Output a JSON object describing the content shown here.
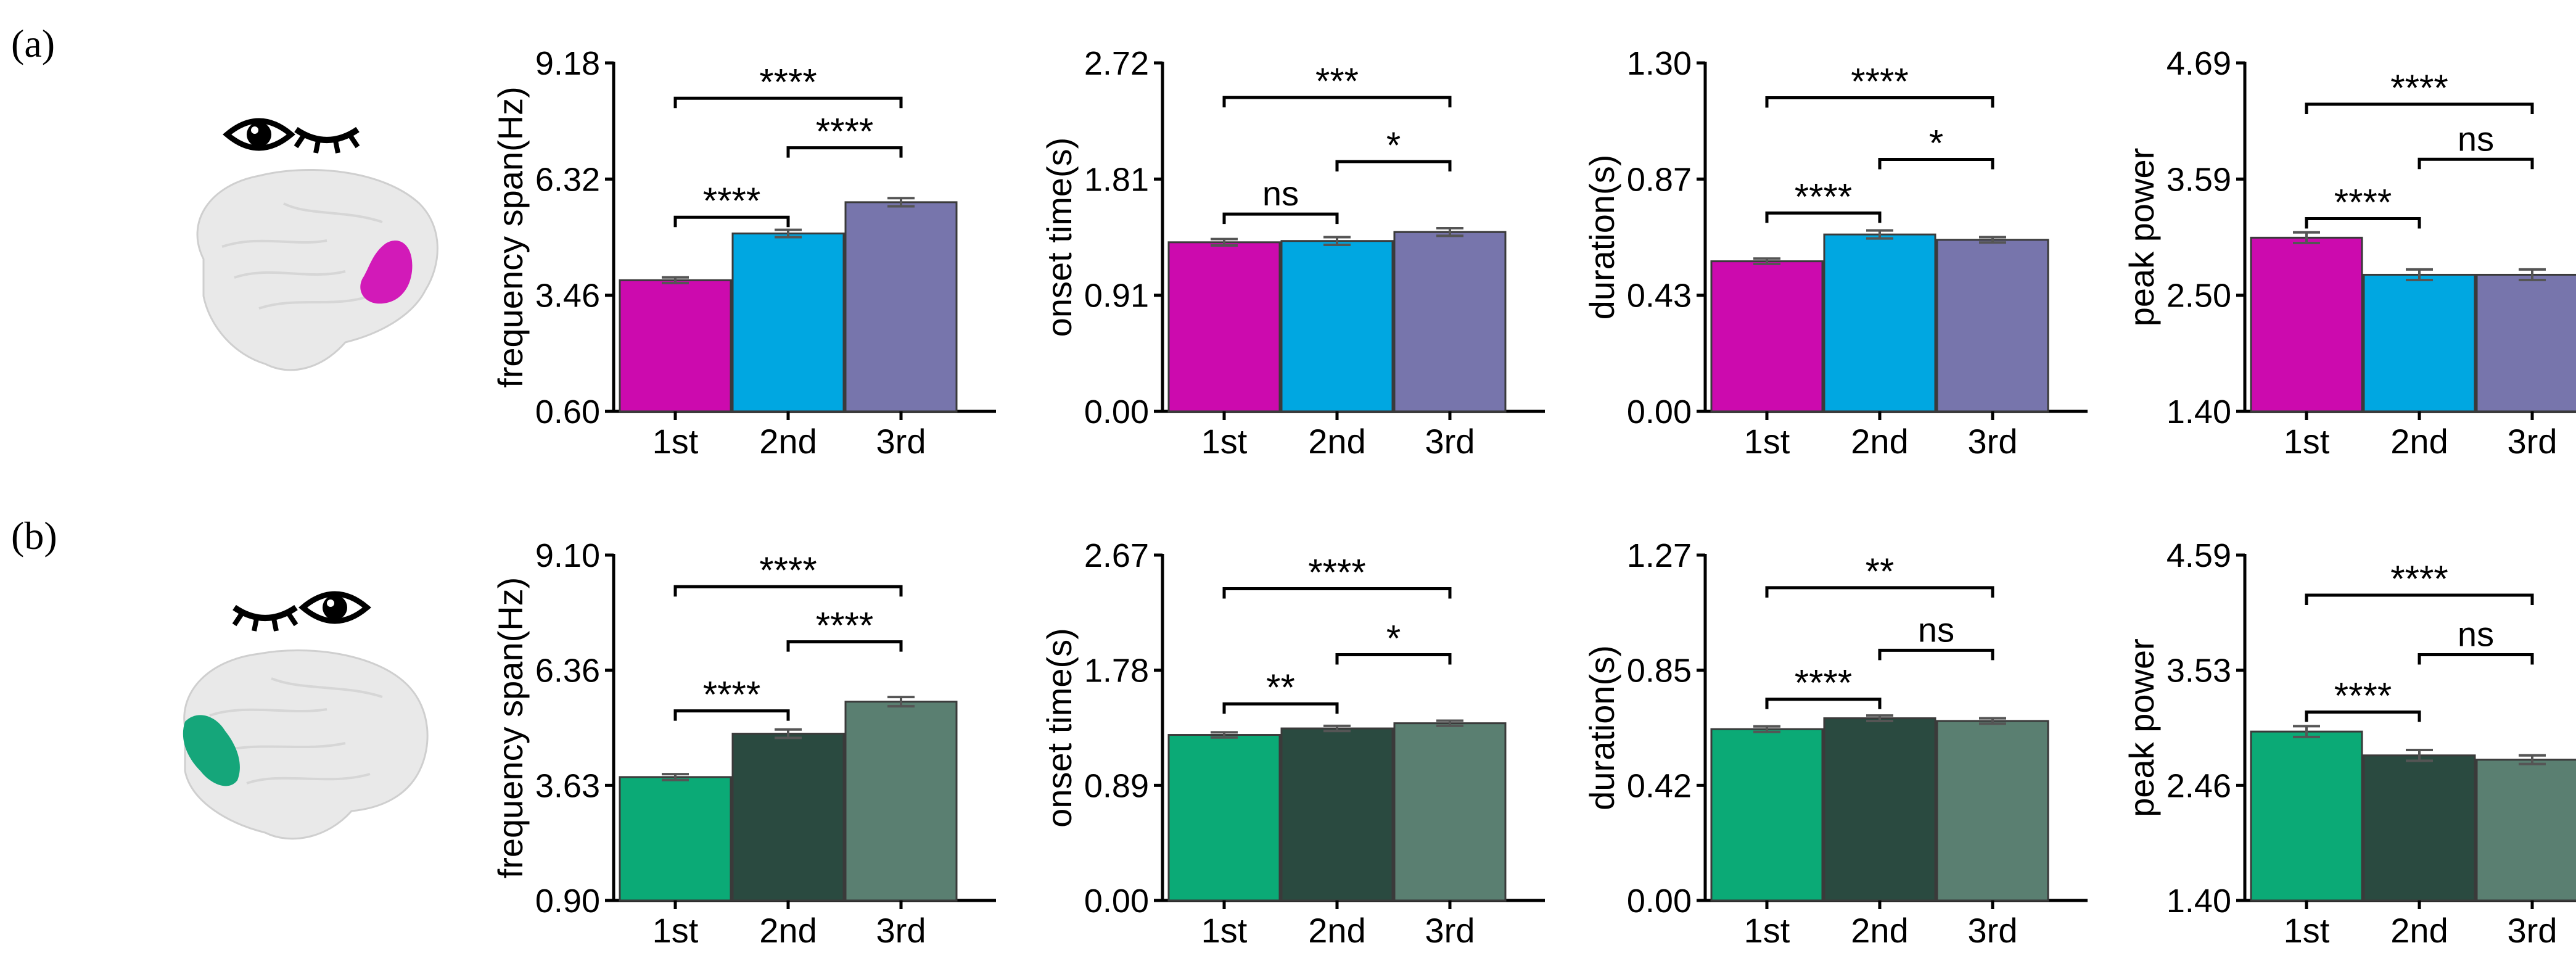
{
  "colors": {
    "row_a": [
      "#CC0AAE",
      "#00A7E1",
      "#7775AC"
    ],
    "row_b": [
      "#0BAA76",
      "#2A4A40",
      "#5A7F71"
    ],
    "brain_highlight_a": "#D21AB8",
    "brain_highlight_b": "#15A67A"
  },
  "rows": [
    {
      "panel_label": "(a)",
      "icons": [
        "open-eye-icon",
        "closed-eye-icon"
      ],
      "brain_region": "right-hemisphere-frontal"
    },
    {
      "panel_label": "(b)",
      "icons": [
        "closed-eye-icon",
        "open-eye-icon"
      ],
      "brain_region": "left-hemisphere-occipital"
    }
  ],
  "chart_data": [
    {
      "type": "bar",
      "row": 0,
      "col": 0,
      "ylabel": "frequency span(Hz)",
      "categories": [
        "1st",
        "2nd",
        "3rd"
      ],
      "values": [
        3.83,
        4.98,
        5.75
      ],
      "errors": [
        0.07,
        0.09,
        0.1
      ],
      "yticks": [
        "0.60",
        "3.46",
        "6.32",
        "9.18"
      ],
      "ylim": [
        0.6,
        9.18
      ],
      "brackets": [
        {
          "from": 0,
          "to": 1,
          "label": "****",
          "y": 5.38
        },
        {
          "from": 1,
          "to": 2,
          "label": "****",
          "y": 7.09
        },
        {
          "from": 0,
          "to": 2,
          "label": "****",
          "y": 8.31
        }
      ]
    },
    {
      "type": "bar",
      "row": 0,
      "col": 1,
      "ylabel": "onset time(s)",
      "categories": [
        "1st",
        "2nd",
        "3rd"
      ],
      "values": [
        1.32,
        1.33,
        1.4
      ],
      "errors": [
        0.025,
        0.03,
        0.03
      ],
      "yticks": [
        "0.00",
        "0.91",
        "1.81",
        "2.72"
      ],
      "ylim": [
        0,
        2.72
      ],
      "brackets": [
        {
          "from": 0,
          "to": 1,
          "label": "ns",
          "y": 1.54
        },
        {
          "from": 1,
          "to": 2,
          "label": "*",
          "y": 1.95
        },
        {
          "from": 0,
          "to": 2,
          "label": "***",
          "y": 2.45
        }
      ]
    },
    {
      "type": "bar",
      "row": 0,
      "col": 2,
      "ylabel": "duration(s)",
      "categories": [
        "1st",
        "2nd",
        "3rd"
      ],
      "values": [
        0.56,
        0.66,
        0.64
      ],
      "errors": [
        0.01,
        0.015,
        0.01
      ],
      "yticks": [
        "0.00",
        "0.43",
        "0.87",
        "1.30"
      ],
      "ylim": [
        0,
        1.3
      ],
      "brackets": [
        {
          "from": 0,
          "to": 1,
          "label": "****",
          "y": 0.74
        },
        {
          "from": 1,
          "to": 2,
          "label": "*",
          "y": 0.94
        },
        {
          "from": 0,
          "to": 2,
          "label": "****",
          "y": 1.17
        }
      ]
    },
    {
      "type": "bar",
      "row": 0,
      "col": 3,
      "ylabel": "peak power",
      "categories": [
        "1st",
        "2nd",
        "3rd"
      ],
      "values": [
        3.04,
        2.69,
        2.69
      ],
      "errors": [
        0.05,
        0.05,
        0.05
      ],
      "yticks": [
        "1.40",
        "2.50",
        "3.59",
        "4.69"
      ],
      "ylim": [
        1.4,
        4.69
      ],
      "brackets": [
        {
          "from": 0,
          "to": 1,
          "label": "****",
          "y": 3.22
        },
        {
          "from": 1,
          "to": 2,
          "label": "ns",
          "y": 3.78
        },
        {
          "from": 0,
          "to": 2,
          "label": "****",
          "y": 4.3
        }
      ]
    },
    {
      "type": "bar",
      "row": 1,
      "col": 0,
      "ylabel": "frequency span(Hz)",
      "categories": [
        "1st",
        "2nd",
        "3rd"
      ],
      "values": [
        3.83,
        4.86,
        5.62
      ],
      "errors": [
        0.07,
        0.1,
        0.11
      ],
      "yticks": [
        "0.90",
        "3.63",
        "6.36",
        "9.10"
      ],
      "ylim": [
        0.9,
        9.1
      ],
      "brackets": [
        {
          "from": 0,
          "to": 1,
          "label": "****",
          "y": 5.4
        },
        {
          "from": 1,
          "to": 2,
          "label": "****",
          "y": 7.04
        },
        {
          "from": 0,
          "to": 2,
          "label": "****",
          "y": 8.35
        }
      ]
    },
    {
      "type": "bar",
      "row": 1,
      "col": 1,
      "ylabel": "onset time(s)",
      "categories": [
        "1st",
        "2nd",
        "3rd"
      ],
      "values": [
        1.28,
        1.33,
        1.37
      ],
      "errors": [
        0.02,
        0.02,
        0.02
      ],
      "yticks": [
        "0.00",
        "0.89",
        "1.78",
        "2.67"
      ],
      "ylim": [
        0,
        2.67
      ],
      "brackets": [
        {
          "from": 0,
          "to": 1,
          "label": "**",
          "y": 1.52
        },
        {
          "from": 1,
          "to": 2,
          "label": "*",
          "y": 1.9
        },
        {
          "from": 0,
          "to": 2,
          "label": "****",
          "y": 2.41
        }
      ]
    },
    {
      "type": "bar",
      "row": 1,
      "col": 2,
      "ylabel": "duration(s)",
      "categories": [
        "1st",
        "2nd",
        "3rd"
      ],
      "values": [
        0.63,
        0.67,
        0.66
      ],
      "errors": [
        0.01,
        0.01,
        0.01
      ],
      "yticks": [
        "0.00",
        "0.42",
        "0.85",
        "1.27"
      ],
      "ylim": [
        0,
        1.27
      ],
      "brackets": [
        {
          "from": 0,
          "to": 1,
          "label": "****",
          "y": 0.74
        },
        {
          "from": 1,
          "to": 2,
          "label": "ns",
          "y": 0.92
        },
        {
          "from": 0,
          "to": 2,
          "label": "**",
          "y": 1.15
        }
      ]
    },
    {
      "type": "bar",
      "row": 1,
      "col": 3,
      "ylabel": "peak power",
      "categories": [
        "1st",
        "2nd",
        "3rd"
      ],
      "values": [
        2.96,
        2.74,
        2.7
      ],
      "errors": [
        0.05,
        0.05,
        0.04
      ],
      "yticks": [
        "1.40",
        "2.46",
        "3.53",
        "4.59"
      ],
      "ylim": [
        1.4,
        4.59
      ],
      "brackets": [
        {
          "from": 0,
          "to": 1,
          "label": "****",
          "y": 3.14
        },
        {
          "from": 1,
          "to": 2,
          "label": "ns",
          "y": 3.67
        },
        {
          "from": 0,
          "to": 2,
          "label": "****",
          "y": 4.22
        }
      ]
    }
  ]
}
